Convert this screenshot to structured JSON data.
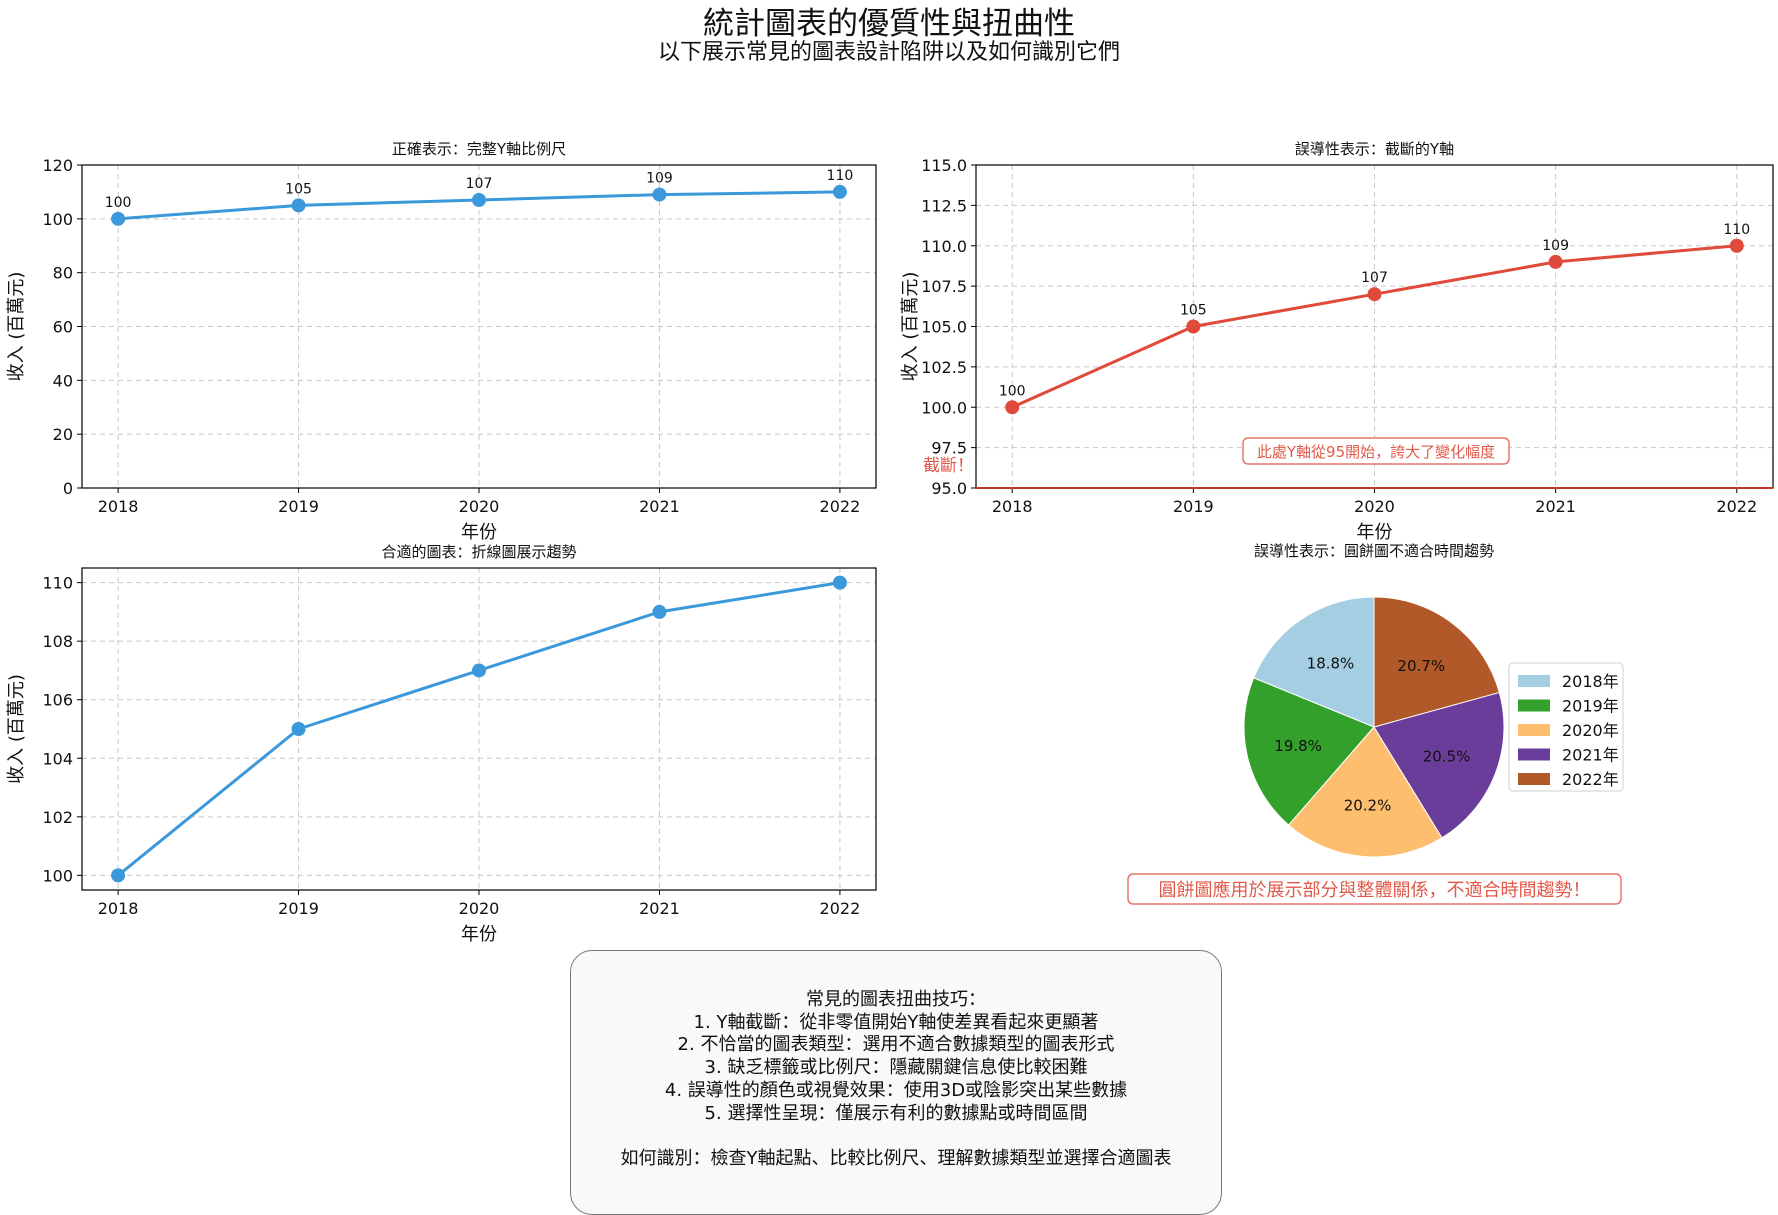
{
  "title": "統計圖表的優質性與扭曲性",
  "subtitle": "以下展示常見的圖表設計陷阱以及如何識別它們",
  "colors": {
    "blue": "#3a98db",
    "red": "#e04a3a",
    "grid": "#c8c8c8",
    "note": "#e05a4a"
  },
  "chart_data": [
    {
      "type": "line",
      "title": "正確表示：完整Y軸比例尺",
      "xlabel": "年份",
      "ylabel": "收入 (百萬元)",
      "categories": [
        "2018",
        "2019",
        "2020",
        "2021",
        "2022"
      ],
      "values": [
        100,
        105,
        107,
        109,
        110
      ],
      "data_labels": [
        "100",
        "105",
        "107",
        "109",
        "110"
      ],
      "ylim": [
        0,
        120
      ],
      "yticks": [
        "0",
        "20",
        "40",
        "60",
        "80",
        "100",
        "120"
      ],
      "grid": true,
      "color": "#3a98db"
    },
    {
      "type": "line",
      "title": "誤導性表示：截斷的Y軸",
      "xlabel": "年份",
      "ylabel": "收入 (百萬元)",
      "categories": [
        "2018",
        "2019",
        "2020",
        "2021",
        "2022"
      ],
      "values": [
        100,
        105,
        107,
        109,
        110
      ],
      "data_labels": [
        "100",
        "105",
        "107",
        "109",
        "110"
      ],
      "ylim": [
        95,
        115
      ],
      "yticks": [
        "95.0",
        "97.5",
        "100.0",
        "102.5",
        "105.0",
        "107.5",
        "110.0",
        "112.5",
        "115.0"
      ],
      "grid": true,
      "color": "#e04a3a",
      "annotations": [
        "此處Y軸從95開始，誇大了變化幅度",
        "截斷！"
      ]
    },
    {
      "type": "line",
      "title": "合適的圖表：折線圖展示趨勢",
      "xlabel": "年份",
      "ylabel": "收入 (百萬元)",
      "categories": [
        "2018",
        "2019",
        "2020",
        "2021",
        "2022"
      ],
      "values": [
        100,
        105,
        107,
        109,
        110
      ],
      "ylim": [
        99.5,
        110.5
      ],
      "yticks": [
        "100",
        "102",
        "104",
        "106",
        "108",
        "110"
      ],
      "grid": true,
      "color": "#3a98db"
    },
    {
      "type": "pie",
      "title": "誤導性表示：圓餅圖不適合時間趨勢",
      "labels": [
        "2018年",
        "2019年",
        "2020年",
        "2021年",
        "2022年"
      ],
      "values": [
        100,
        105,
        107,
        109,
        110
      ],
      "percent_labels": [
        "18.8%",
        "19.8%",
        "20.2%",
        "20.5%",
        "20.7%"
      ],
      "colors": [
        "#a6cee3",
        "#33a02c",
        "#fdbf6f",
        "#6a3d9a",
        "#b15928"
      ],
      "legend": "right",
      "annotation": "圓餅圖應用於展示部分與整體關係，不適合時間趨勢！"
    }
  ],
  "info": {
    "heading": "常見的圖表扭曲技巧：",
    "items": [
      "1. Y軸截斷：從非零值開始Y軸使差異看起來更顯著",
      "2. 不恰當的圖表類型：選用不適合數據類型的圖表形式",
      "3. 缺乏標籤或比例尺：隱藏關鍵信息使比較困難",
      "4. 誤導性的顏色或視覺效果：使用3D或陰影突出某些數據",
      "5. 選擇性呈現：僅展示有利的數據點或時間區間"
    ],
    "footer": "如何識別：檢查Y軸起點、比較比例尺、理解數據類型並選擇合適圖表"
  }
}
